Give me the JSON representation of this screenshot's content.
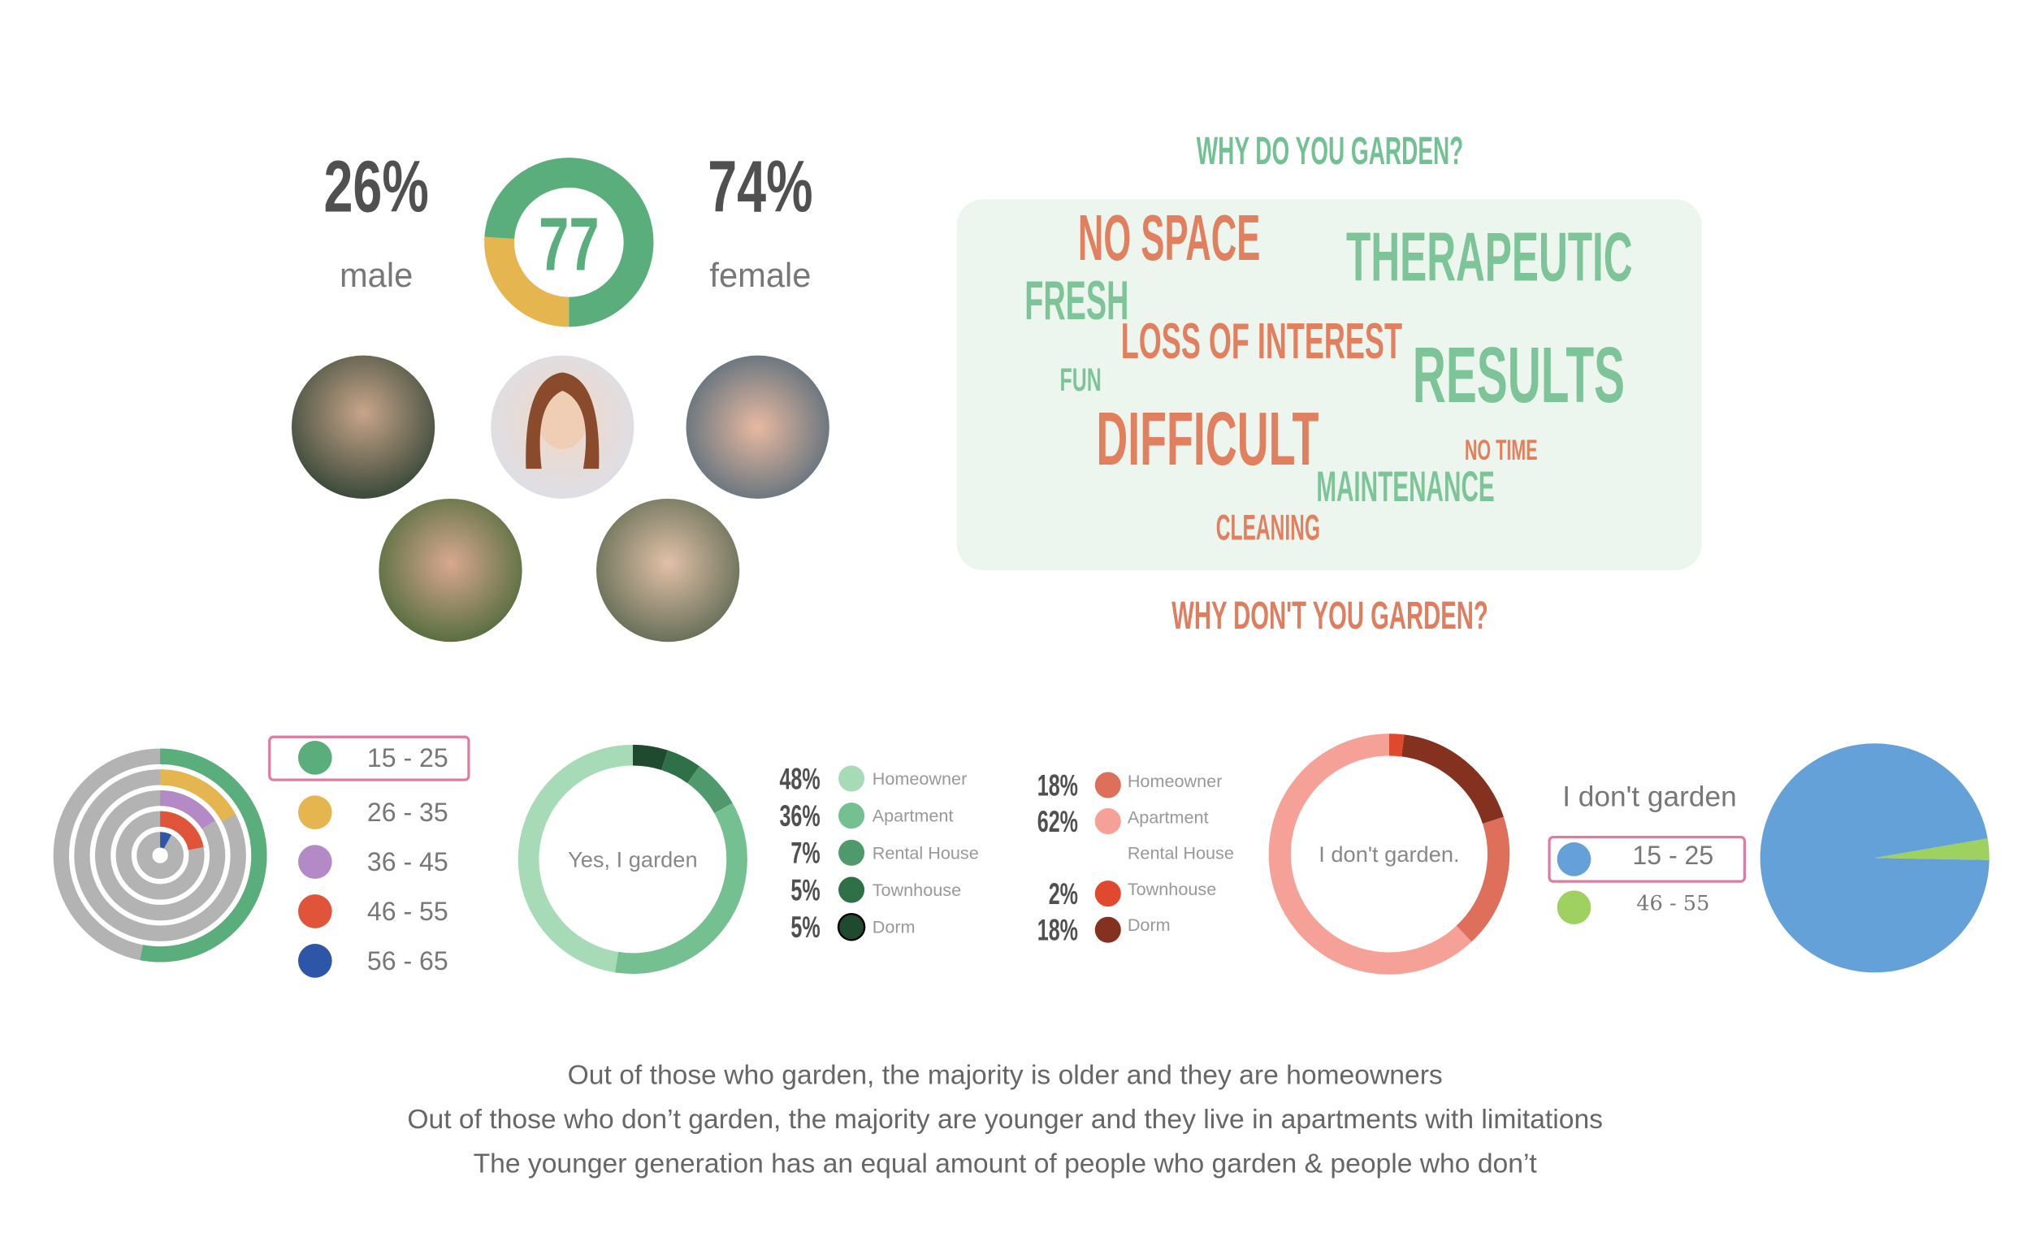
{
  "chart_data": [
    {
      "type": "donut",
      "center_value": 77,
      "categories": [
        "male",
        "female"
      ],
      "values": [
        26,
        74
      ],
      "value_labels": [
        "26%",
        "74%"
      ],
      "colors": [
        "#e5b54f",
        "#5aae7b"
      ]
    },
    {
      "type": "rings",
      "categories": [
        "15 - 25",
        "26 - 35",
        "36 - 45",
        "46 - 55",
        "56 - 65"
      ],
      "values": [
        53,
        17,
        16,
        22,
        8
      ],
      "colors": [
        "#5aae7b",
        "#e5b54f",
        "#b48ac6",
        "#e0553a",
        "#2d56a8"
      ]
    },
    {
      "type": "donut",
      "center_text": "Yes, I garden",
      "categories": [
        "Homeowner",
        "Apartment",
        "Rental House",
        "Townhouse",
        "Dorm"
      ],
      "values": [
        48,
        36,
        7,
        5,
        5
      ],
      "value_labels": [
        "48%",
        "36%",
        "7%",
        "5%",
        "5%"
      ],
      "colors": [
        "#a7dab7",
        "#74c091",
        "#4f9a6c",
        "#2f7049",
        "#1f4a30"
      ]
    },
    {
      "type": "donut",
      "center_text": "I don't garden.",
      "categories": [
        "Homeowner",
        "Apartment",
        "Rental House",
        "Townhouse",
        "Dorm"
      ],
      "values": [
        18,
        62,
        null,
        2,
        18
      ],
      "value_labels": [
        "18%",
        "62%",
        null,
        "2%",
        "18%"
      ],
      "colors": [
        "#de6f5a",
        "#f5a197",
        "#e0492e",
        "#e0492e",
        "#84311f"
      ]
    },
    {
      "type": "pie",
      "title": "I don't garden",
      "categories": [
        "15 - 25",
        "46 - 55"
      ],
      "values": [
        97,
        3
      ],
      "colors": [
        "#64a1d9",
        "#9fd160"
      ]
    }
  ],
  "word_cloud": {
    "title": "WHY DO YOU GARDEN?",
    "subtitle": "WHY DON'T YOU GARDEN?",
    "title_color": "#72c192",
    "subtitle_color": "#df7d5f",
    "words": [
      {
        "text": "NO SPACE",
        "color": "#e0805e"
      },
      {
        "text": "THERAPEUTIC",
        "color": "#7dc598"
      },
      {
        "text": "FRESH",
        "color": "#7dc598"
      },
      {
        "text": "LOSS OF INTEREST",
        "color": "#e0805e"
      },
      {
        "text": "FUN",
        "color": "#7dc598"
      },
      {
        "text": "RESULTS",
        "color": "#7dc598"
      },
      {
        "text": "DIFFICULT",
        "color": "#e0805e"
      },
      {
        "text": "NO TIME",
        "color": "#e0805e"
      },
      {
        "text": "MAINTENANCE",
        "color": "#7dc598"
      },
      {
        "text": "CLEANING",
        "color": "#e0805e"
      }
    ]
  },
  "footer": [
    "Out of those who garden, the majority is older and they are homeowners",
    "Out of those who don’t garden, the majority are younger and they live in apartments with limitations",
    "The younger generation has an equal amount of people who garden & people who don’t"
  ]
}
